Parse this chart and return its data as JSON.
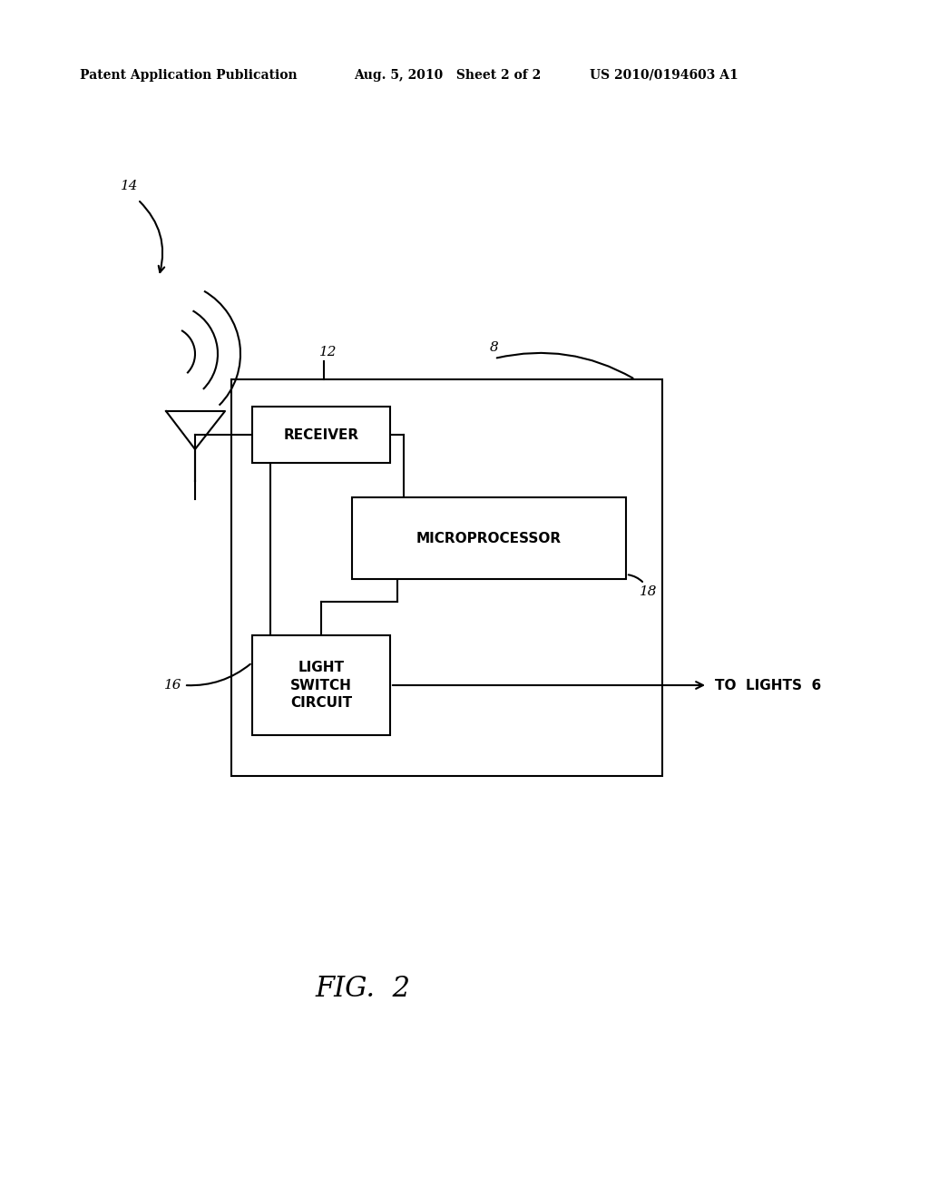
{
  "bg_color": "#ffffff",
  "line_color": "#000000",
  "header_left": "Patent Application Publication",
  "header_mid": "Aug. 5, 2010   Sheet 2 of 2",
  "header_right": "US 2010/0194603 A1",
  "fig_label": "FIG.  2",
  "label_14": "14",
  "label_12": "12",
  "label_8": "8",
  "label_18": "18",
  "label_16": "16",
  "text_receiver": "RECEIVER",
  "text_microprocessor": "MICROPROCESSOR",
  "text_light_switch": "LIGHT\nSWITCH\nCIRCUIT",
  "text_to_lights": "TO  LIGHTS  6"
}
